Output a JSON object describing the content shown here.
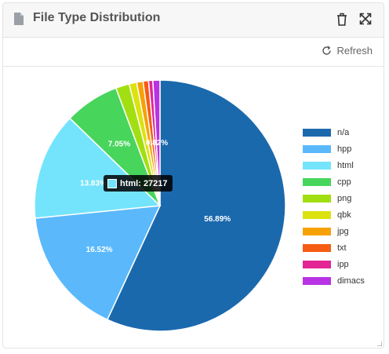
{
  "panel": {
    "title": "File Type Distribution"
  },
  "toolbar": {
    "refresh_label": "Refresh"
  },
  "icons": {
    "title": "document-icon",
    "delete": "trash-icon",
    "expand": "expand-icon",
    "refresh": "refresh-icon"
  },
  "chart_data": {
    "type": "pie",
    "categories": [
      "n/a",
      "hpp",
      "html",
      "cpp",
      "png",
      "qbk",
      "jpg",
      "txt",
      "ipp",
      "dimacs"
    ],
    "values": [
      56.89,
      16.52,
      13.83,
      7.05,
      1.75,
      0.98,
      0.82,
      0.7,
      0.55,
      0.91
    ],
    "colors": [
      "#1b69ad",
      "#5bb9fb",
      "#73e4fb",
      "#48d55c",
      "#a2df12",
      "#dbe20f",
      "#f6a206",
      "#f65c14",
      "#e32596",
      "#b733e3"
    ],
    "data_labels": {
      "n/a": "56.89%",
      "hpp": "16.52%",
      "html": "13.83%",
      "cpp": "7.05%",
      "small": "0.82%"
    },
    "legend_placement": "right",
    "tooltip": {
      "label": "html: 27217",
      "color": "#73e4fb"
    }
  }
}
